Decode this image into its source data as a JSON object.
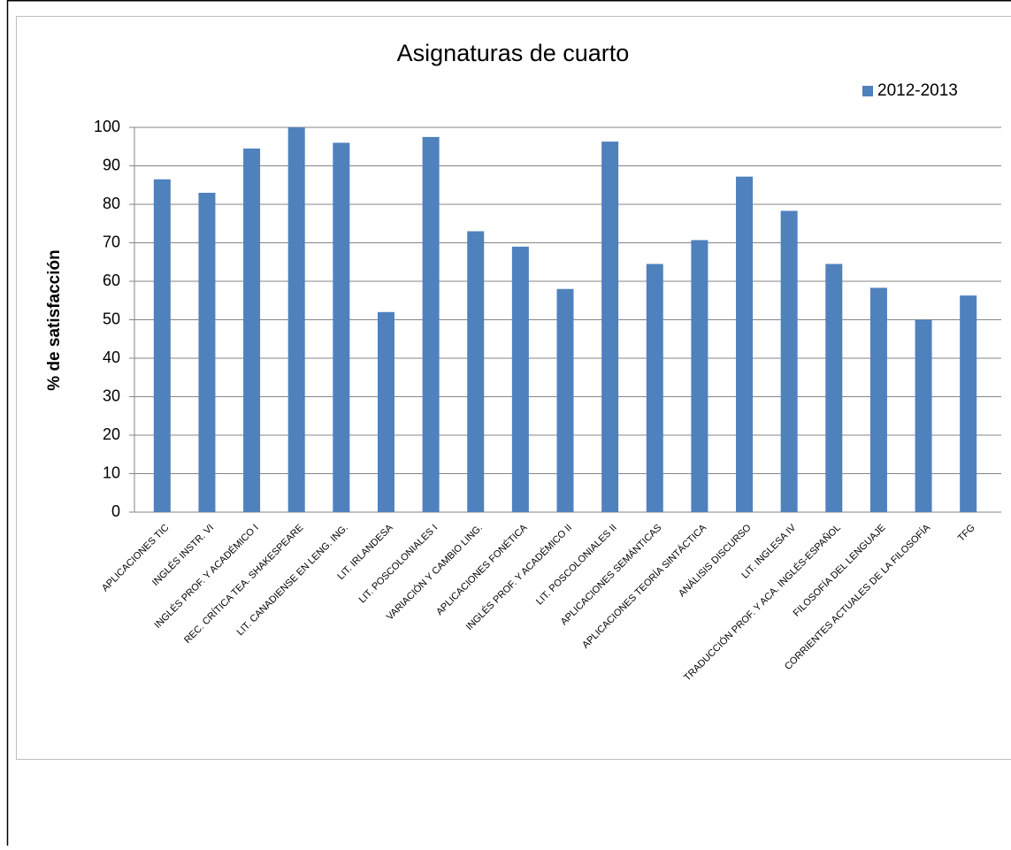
{
  "chart_data": {
    "type": "bar",
    "title": "Asignaturas de cuarto",
    "y_label": "% de satisfacción",
    "categories": [
      "APLICACIONES TIC",
      "INGLÉS INSTR. VI",
      "INGLÉS PROF. Y ACADÉMICO I",
      "REC. CRÍTICA TEA. SHAKESPEARE",
      "LIT. CANADIENSE EN LENG. ING.",
      "LIT. IRLANDESA",
      "LIT. POSCOLONIALES I",
      "VARIACIÓN Y CAMBIO LING.",
      "APLICACIONES FONÉTICA",
      "INGLÉS PROF. Y ACADÉMICO II",
      "LIT. POSCOLONIALES II",
      "APLICACIONES SEMÁNTICAS",
      "APLICACIONES TEORÍA SINTÁCTICA",
      "ANÁLISIS DISCURSO",
      "LIT. INGLESA IV",
      "TRADUCCIÓN PROF. Y ACA. INGLÉS-ESPAÑOL",
      "FILOSOFÍA DEL LENGUAJE",
      "CORRIENTES ACTUALES DE LA FILOSOFÍA",
      "TFG"
    ],
    "series": [
      {
        "name": "2012-2013",
        "color": "#4f81bd",
        "values": [
          86.5,
          83,
          94.5,
          100,
          96,
          52,
          97.5,
          73,
          69,
          58,
          96.3,
          64.5,
          70.7,
          87.2,
          78.3,
          64.5,
          58.3,
          50,
          56.3
        ]
      }
    ],
    "ylim": [
      0,
      100
    ],
    "yticks": [
      0,
      10,
      20,
      30,
      40,
      50,
      60,
      70,
      80,
      90,
      100
    ],
    "grid": true,
    "legend": "top-right"
  }
}
